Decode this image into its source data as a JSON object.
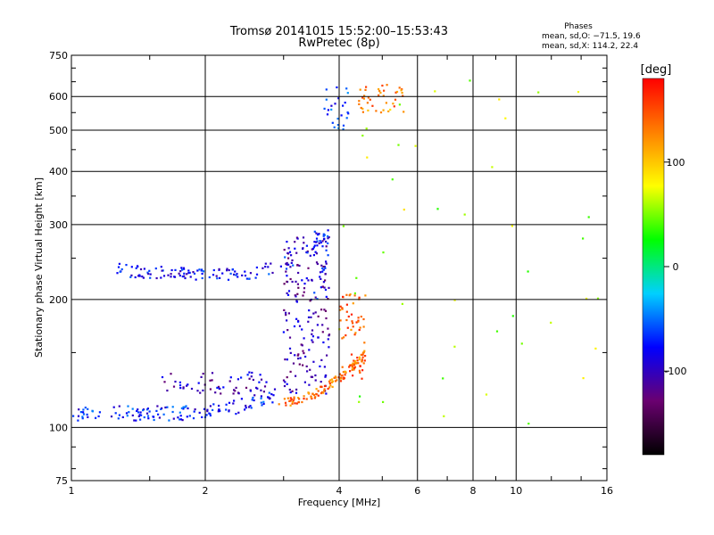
{
  "chart_data": {
    "type": "scatter",
    "title": "Tromsø 20141015 15:52:00–15:53:43",
    "subtitle": "RwPretec (8p)",
    "xlabel": "Frequency [MHz]",
    "ylabel": "Stationary phase Virtual Height [km]",
    "xscale": "log",
    "yscale": "log",
    "xlim": [
      1,
      16
    ],
    "ylim": [
      75,
      750
    ],
    "x_ticks": [
      1,
      2,
      4,
      6,
      8,
      10,
      16
    ],
    "y_ticks": [
      75,
      100,
      200,
      300,
      400,
      500,
      600,
      750
    ],
    "grid": true,
    "legend": {
      "heading": "Phases",
      "line1": "mean, sd,O: −71.5, 19.6",
      "line2": "mean, sd,X: 114.2, 22.4"
    },
    "colorbar": {
      "label": "[deg]",
      "min": -180,
      "max": 180,
      "ticks": [
        100,
        0,
        -100
      ],
      "colormap": [
        "#000000",
        "#6a0070",
        "#0000ff",
        "#00d0ff",
        "#00ff00",
        "#ffff00",
        "#ff8000",
        "#ff0000"
      ]
    },
    "clusters": [
      {
        "name": "O-trace low",
        "phase": -75,
        "n": 140,
        "f": [
          1.0,
          2.9
        ],
        "h": [
          108,
          122
        ],
        "curve": "lowO"
      },
      {
        "name": "O-trace low upper band",
        "phase": -100,
        "n": 60,
        "f": [
          1.6,
          2.8
        ],
        "h": [
          120,
          135
        ],
        "curve": "flat"
      },
      {
        "name": "O-trace spread F",
        "phase": -105,
        "n": 170,
        "f": [
          3.0,
          3.8
        ],
        "h": [
          120,
          280
        ],
        "curve": "box"
      },
      {
        "name": "O-trace F cusp",
        "phase": -80,
        "n": 30,
        "f": [
          3.5,
          3.8
        ],
        "h": [
          200,
          290
        ],
        "curve": "box"
      },
      {
        "name": "O-trace F high",
        "phase": -80,
        "n": 130,
        "f": [
          1.25,
          3.8
        ],
        "h": [
          220,
          300
        ],
        "curve": "highO"
      },
      {
        "name": "X-trace low",
        "phase": 135,
        "n": 110,
        "f": [
          2.9,
          4.6
        ],
        "h": [
          115,
          150
        ],
        "curve": "lowX"
      },
      {
        "name": "X-trace cusp",
        "phase": 140,
        "n": 60,
        "f": [
          4.0,
          4.6
        ],
        "h": [
          130,
          210
        ],
        "curve": "box"
      },
      {
        "name": "E-sporadic high O",
        "phase": -70,
        "n": 25,
        "f": [
          3.7,
          4.2
        ],
        "h": [
          500,
          640
        ],
        "curve": "box"
      },
      {
        "name": "E-sporadic high X",
        "phase": 130,
        "n": 40,
        "f": [
          4.4,
          5.6
        ],
        "h": [
          540,
          640
        ],
        "curve": "box"
      },
      {
        "name": "scattered echoes",
        "phase": 60,
        "n": 45,
        "f": [
          4.0,
          15.5
        ],
        "h": [
          100,
          680
        ],
        "curve": "scatter"
      }
    ]
  }
}
